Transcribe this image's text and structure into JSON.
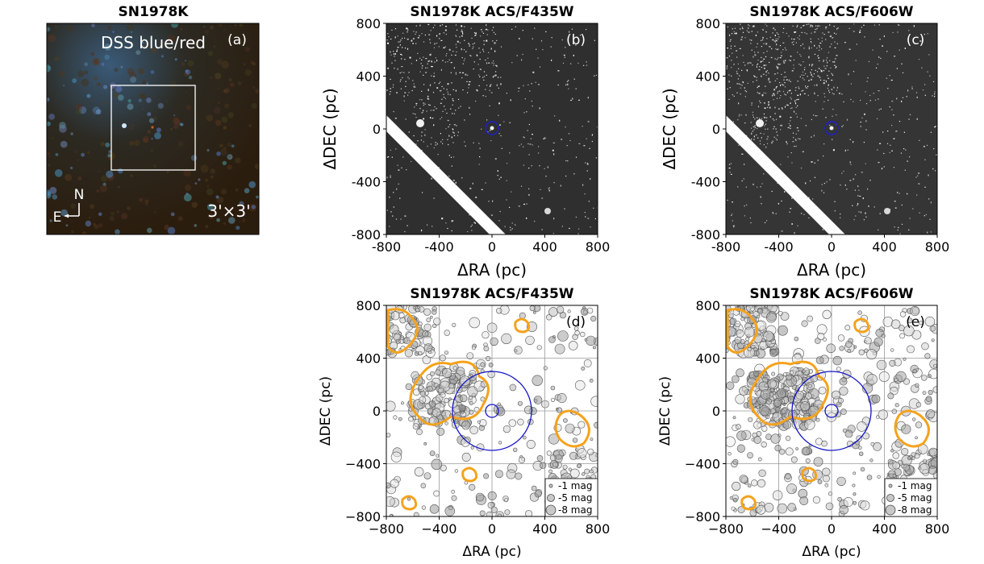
{
  "chart_data": [
    {
      "panel": "a",
      "type": "image",
      "title": "SN1978K",
      "label": "(a)",
      "overlay_text": "DSS blue/red",
      "scale_text": "3'×3'",
      "compass": {
        "north": "N",
        "east": "E"
      }
    },
    {
      "panel": "b",
      "type": "image",
      "title": "SN1978K ACS/F435W",
      "label": "(b)",
      "xlabel": "ΔRA (pc)",
      "ylabel": "ΔDEC (pc)",
      "xlim": [
        -800,
        800
      ],
      "ylim": [
        -800,
        800
      ],
      "xticks": [
        "-800",
        "-400",
        "0",
        "400",
        "800"
      ],
      "yticks": [
        "800",
        "400",
        "0",
        "-400",
        "-800"
      ],
      "marker_circle": {
        "x": 0,
        "y": 0,
        "radius_pc": 50,
        "color": "#1f1fcf"
      }
    },
    {
      "panel": "c",
      "type": "image",
      "title": "SN1978K ACS/F606W",
      "label": "(c)",
      "xlabel": "ΔRA (pc)",
      "ylabel": "ΔDEC (pc)",
      "xlim": [
        -800,
        800
      ],
      "ylim": [
        -800,
        800
      ],
      "xticks": [
        "-800",
        "-400",
        "0",
        "400",
        "800"
      ],
      "yticks": [
        "800",
        "400",
        "0",
        "-400",
        "-800"
      ],
      "marker_circle": {
        "x": 0,
        "y": 0,
        "radius_pc": 50,
        "color": "#1f1fcf"
      }
    },
    {
      "panel": "d",
      "type": "scatter",
      "title": "SN1978K ACS/F435W",
      "label": "(d)",
      "xlabel": "ΔRA (pc)",
      "ylabel": "ΔDEC (pc)",
      "xlim": [
        -800,
        800
      ],
      "ylim": [
        -800,
        800
      ],
      "xticks": [
        "−800",
        "−400",
        "0",
        "400",
        "800"
      ],
      "yticks": [
        "800",
        "400",
        "0",
        "−400",
        "−800"
      ],
      "grid": true,
      "circles_pc": [
        50,
        300
      ],
      "legend": [
        "-1 mag",
        "-5 mag",
        "-8 mag"
      ],
      "legend_loc": "lower right"
    },
    {
      "panel": "e",
      "type": "scatter",
      "title": "SN1978K ACS/F606W",
      "label": "(e)",
      "xlabel": "ΔRA (pc)",
      "ylabel": "ΔDEC (pc)",
      "xlim": [
        -800,
        800
      ],
      "ylim": [
        -800,
        800
      ],
      "xticks": [
        "−800",
        "−400",
        "0",
        "400",
        "800"
      ],
      "yticks": [
        "800",
        "400",
        "0",
        "−400",
        "−800"
      ],
      "grid": true,
      "circles_pc": [
        50,
        300
      ],
      "legend": [
        "-1 mag",
        "-5 mag",
        "-8 mag"
      ],
      "legend_loc": "lower right"
    }
  ]
}
